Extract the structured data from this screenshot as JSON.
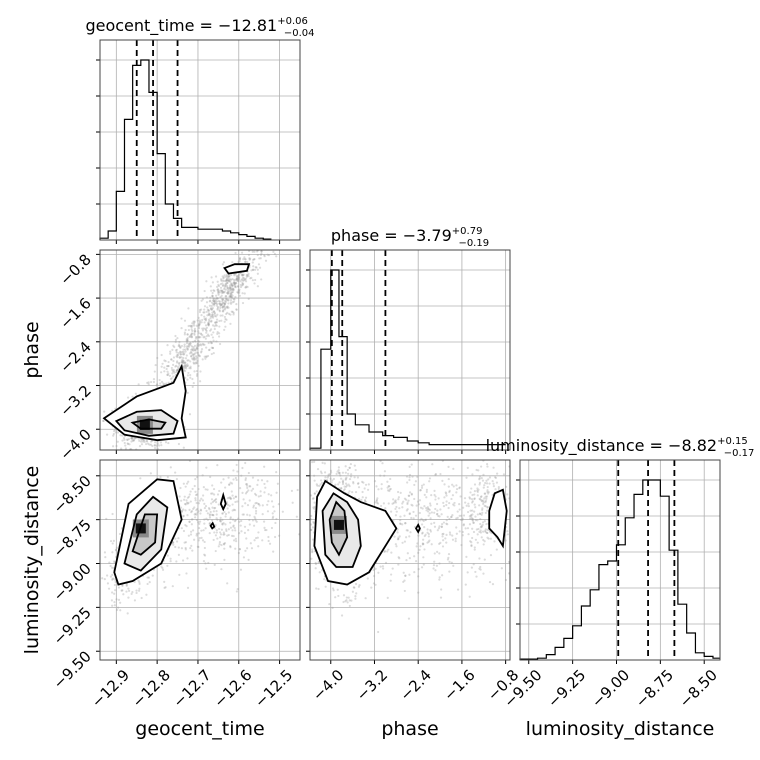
{
  "chart_data": {
    "type": "corner",
    "parameters": [
      "geocent_time",
      "phase",
      "luminosity_distance"
    ],
    "titles": [
      {
        "parameter": "geocent_time",
        "text": "geocent_time = −12.81",
        "median": -12.81,
        "plus": "+0.06",
        "minus": "−0.04"
      },
      {
        "parameter": "phase",
        "text": "phase = −3.79",
        "median": -3.79,
        "plus": "+0.79",
        "minus": "−0.19"
      },
      {
        "parameter": "luminosity_distance",
        "text": "luminosity_distance = −8.82",
        "median": -8.82,
        "plus": "+0.15",
        "minus": "−0.17"
      }
    ],
    "ranges": {
      "geocent_time": [
        -12.94,
        -12.45
      ],
      "phase": [
        -4.38,
        -0.72
      ],
      "luminosity_distance": [
        -9.55,
        -8.41
      ]
    },
    "ticks": {
      "geocent_time": [
        {
          "v": -12.9,
          "label": "−12.9"
        },
        {
          "v": -12.8,
          "label": "−12.8"
        },
        {
          "v": -12.7,
          "label": "−12.7"
        },
        {
          "v": -12.6,
          "label": "−12.6"
        },
        {
          "v": -12.5,
          "label": "−12.5"
        }
      ],
      "phase": [
        {
          "v": -4.0,
          "label": "−4.0"
        },
        {
          "v": -3.2,
          "label": "−3.2"
        },
        {
          "v": -2.4,
          "label": "−2.4"
        },
        {
          "v": -1.6,
          "label": "−1.6"
        },
        {
          "v": -0.8,
          "label": "−0.8"
        }
      ],
      "luminosity_distance": [
        {
          "v": -9.5,
          "label": "−9.50"
        },
        {
          "v": -9.25,
          "label": "−9.25"
        },
        {
          "v": -9.0,
          "label": "−9.00"
        },
        {
          "v": -8.75,
          "label": "−8.75"
        },
        {
          "v": -8.5,
          "label": "−8.50"
        }
      ]
    },
    "quantiles": {
      "geocent_time": [
        -12.85,
        -12.81,
        -12.75
      ],
      "phase": [
        -3.98,
        -3.79,
        -3.0
      ],
      "luminosity_distance": [
        -8.99,
        -8.82,
        -8.67
      ]
    },
    "histograms": {
      "geocent_time": {
        "edges": [
          -12.94,
          -12.92,
          -12.9,
          -12.88,
          -12.86,
          -12.84,
          -12.82,
          -12.8,
          -12.78,
          -12.76,
          -12.74,
          -12.72,
          -12.7,
          -12.68,
          -12.66,
          -12.64,
          -12.62,
          -12.6,
          -12.58,
          -12.56,
          -12.54,
          -12.52
        ],
        "counts": [
          0.01,
          0.05,
          0.27,
          0.67,
          0.97,
          1.0,
          0.82,
          0.48,
          0.2,
          0.12,
          0.07,
          0.07,
          0.06,
          0.06,
          0.06,
          0.05,
          0.04,
          0.03,
          0.02,
          0.01,
          0.005
        ]
      },
      "phase": {
        "edges": [
          -4.38,
          -4.18,
          -4.0,
          -3.85,
          -3.7,
          -3.55,
          -3.3,
          -3.05,
          -2.85,
          -2.6,
          -2.4,
          -2.2,
          -2.0,
          -1.8,
          -1.6,
          -1.4,
          -1.2,
          -1.0,
          -0.8
        ],
        "counts": [
          0.01,
          0.56,
          1.0,
          0.63,
          0.2,
          0.14,
          0.1,
          0.08,
          0.07,
          0.05,
          0.04,
          0.03,
          0.03,
          0.03,
          0.03,
          0.03,
          0.03,
          0.03
        ]
      },
      "luminosity_distance": {
        "edges": [
          -9.55,
          -9.5,
          -9.45,
          -9.4,
          -9.35,
          -9.3,
          -9.25,
          -9.2,
          -9.15,
          -9.1,
          -9.05,
          -9.0,
          -8.95,
          -8.9,
          -8.85,
          -8.8,
          -8.75,
          -8.7,
          -8.65,
          -8.6,
          -8.55,
          -8.5,
          -8.45,
          -8.41
        ],
        "counts": [
          0.005,
          0.005,
          0.01,
          0.03,
          0.07,
          0.12,
          0.19,
          0.3,
          0.39,
          0.53,
          0.55,
          0.64,
          0.79,
          0.92,
          1.0,
          1.0,
          0.91,
          0.61,
          0.31,
          0.15,
          0.04,
          0.02,
          0.01
        ]
      }
    },
    "pairs": [
      {
        "x": "geocent_time",
        "y": "phase",
        "cloud": [
          {
            "cx": -12.83,
            "cy": -3.9,
            "sx": 0.035,
            "sy": 0.22,
            "rho": 0.0,
            "n": 700
          },
          {
            "cx": -12.72,
            "cy": -2.6,
            "sx": 0.05,
            "sy": 0.55,
            "rho": 0.85,
            "n": 500
          },
          {
            "cx": -12.62,
            "cy": -1.4,
            "sx": 0.04,
            "sy": 0.35,
            "rho": 0.8,
            "n": 420
          }
        ],
        "density_peak": {
          "x": -12.83,
          "y": -3.92
        },
        "contours": [
          [
            [
              -12.93,
              -3.8
            ],
            [
              -12.85,
              -3.4
            ],
            [
              -12.76,
              -3.15
            ],
            [
              -12.74,
              -2.85
            ],
            [
              -12.73,
              -3.3
            ],
            [
              -12.74,
              -3.8
            ],
            [
              -12.73,
              -4.15
            ],
            [
              -12.8,
              -4.2
            ],
            [
              -12.88,
              -4.1
            ]
          ],
          [
            [
              -12.9,
              -3.85
            ],
            [
              -12.85,
              -3.68
            ],
            [
              -12.79,
              -3.65
            ],
            [
              -12.75,
              -3.85
            ],
            [
              -12.76,
              -4.08
            ],
            [
              -12.82,
              -4.12
            ],
            [
              -12.88,
              -4.02
            ]
          ],
          [
            [
              -12.86,
              -3.88
            ],
            [
              -12.82,
              -3.82
            ],
            [
              -12.78,
              -3.88
            ],
            [
              -12.79,
              -3.99
            ],
            [
              -12.84,
              -3.99
            ]
          ],
          [
            [
              -12.635,
              -1.05
            ],
            [
              -12.61,
              -0.98
            ],
            [
              -12.575,
              -0.98
            ],
            [
              -12.58,
              -1.1
            ],
            [
              -12.625,
              -1.15
            ]
          ]
        ]
      },
      {
        "x": "geocent_time",
        "y": "luminosity_distance",
        "cloud": [
          {
            "cx": -12.83,
            "cy": -8.88,
            "sx": 0.04,
            "sy": 0.14,
            "rho": 0.7,
            "n": 900
          },
          {
            "cx": -12.66,
            "cy": -8.74,
            "sx": 0.09,
            "sy": 0.15,
            "rho": 0.3,
            "n": 500
          }
        ],
        "density_peak": {
          "x": -12.84,
          "y": -8.8
        },
        "contours": [
          [
            [
              -12.905,
              -9.05
            ],
            [
              -12.87,
              -8.66
            ],
            [
              -12.8,
              -8.52
            ],
            [
              -12.76,
              -8.53
            ],
            [
              -12.74,
              -8.75
            ],
            [
              -12.79,
              -9.0
            ],
            [
              -12.86,
              -9.1
            ],
            [
              -12.895,
              -9.12
            ]
          ],
          [
            [
              -12.88,
              -9.0
            ],
            [
              -12.85,
              -8.72
            ],
            [
              -12.81,
              -8.62
            ],
            [
              -12.775,
              -8.68
            ],
            [
              -12.79,
              -8.92
            ],
            [
              -12.84,
              -9.04
            ]
          ],
          [
            [
              -12.86,
              -8.93
            ],
            [
              -12.83,
              -8.72
            ],
            [
              -12.8,
              -8.72
            ],
            [
              -12.805,
              -8.88
            ],
            [
              -12.84,
              -8.95
            ]
          ],
          [
            [
              -12.644,
              -8.66
            ],
            [
              -12.638,
              -8.61
            ],
            [
              -12.632,
              -8.66
            ],
            [
              -12.638,
              -8.69
            ]
          ],
          [
            [
              -12.669,
              -8.785
            ],
            [
              -12.664,
              -8.77
            ],
            [
              -12.66,
              -8.79
            ],
            [
              -12.665,
              -8.8
            ]
          ]
        ]
      },
      {
        "x": "phase",
        "y": "luminosity_distance",
        "cloud": [
          {
            "cx": -3.85,
            "cy": -8.8,
            "sx": 0.28,
            "sy": 0.17,
            "rho": -0.2,
            "n": 900
          },
          {
            "cx": -2.3,
            "cy": -8.75,
            "sx": 0.8,
            "sy": 0.17,
            "rho": 0.0,
            "n": 500
          },
          {
            "cx": -1.1,
            "cy": -8.7,
            "sx": 0.2,
            "sy": 0.12,
            "rho": 0.0,
            "n": 200
          }
        ],
        "density_peak": {
          "x": -3.85,
          "y": -8.78
        },
        "contours": [
          [
            [
              -4.25,
              -8.62
            ],
            [
              -4.1,
              -8.53
            ],
            [
              -3.75,
              -8.6
            ],
            [
              -3.45,
              -8.65
            ],
            [
              -3.0,
              -8.7
            ],
            [
              -2.8,
              -8.8
            ],
            [
              -3.1,
              -8.95
            ],
            [
              -3.3,
              -9.05
            ],
            [
              -3.7,
              -9.12
            ],
            [
              -4.05,
              -9.1
            ],
            [
              -4.3,
              -8.9
            ]
          ],
          [
            [
              -4.15,
              -8.7
            ],
            [
              -3.95,
              -8.6
            ],
            [
              -3.7,
              -8.65
            ],
            [
              -3.5,
              -8.75
            ],
            [
              -3.45,
              -8.9
            ],
            [
              -3.6,
              -9.02
            ],
            [
              -3.9,
              -9.02
            ],
            [
              -4.1,
              -8.95
            ]
          ],
          [
            [
              -4.02,
              -8.75
            ],
            [
              -3.9,
              -8.65
            ],
            [
              -3.75,
              -8.7
            ],
            [
              -3.7,
              -8.85
            ],
            [
              -3.85,
              -8.95
            ],
            [
              -3.98,
              -8.88
            ]
          ],
          [
            [
              -1.1,
              -8.7
            ],
            [
              -1.0,
              -8.6
            ],
            [
              -0.85,
              -8.58
            ],
            [
              -0.78,
              -8.7
            ],
            [
              -0.85,
              -8.9
            ],
            [
              -0.95,
              -8.85
            ],
            [
              -1.1,
              -8.8
            ]
          ],
          [
            [
              -2.44,
              -8.8
            ],
            [
              -2.4,
              -8.78
            ],
            [
              -2.37,
              -8.8
            ],
            [
              -2.4,
              -8.82
            ]
          ]
        ]
      }
    ],
    "xlabels": [
      "geocent_time",
      "phase",
      "luminosity_distance"
    ],
    "ylabels": [
      "phase",
      "luminosity_distance"
    ]
  }
}
